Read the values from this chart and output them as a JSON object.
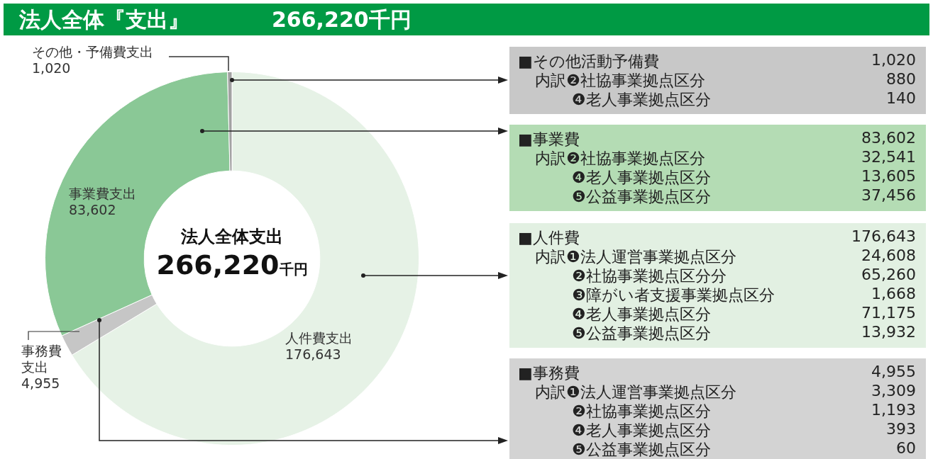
{
  "chart_data": {
    "type": "donut",
    "title": "法人全体『支出』",
    "subtitle": "266,220千円",
    "categories": [
      "人件費支出",
      "事務費支出",
      "事業費支出",
      "その他・予備費支出"
    ],
    "values": [
      176643,
      4955,
      83602,
      1020
    ],
    "colors": [
      "#e6f2e6",
      "#c6c6c6",
      "#8ac896",
      "#a2a2a2"
    ],
    "value_labels": [
      "176,643",
      "4,955",
      "83,602",
      "1,020"
    ],
    "legend": false,
    "annotations": [
      "法人全体支出",
      "266,220",
      "千円",
      "■その他活動予備費",
      "1,020",
      "内訳❷社協事業拠点区分",
      "880",
      "❹老人事業拠点区分",
      "140",
      "■事業費",
      "83,602",
      "内訳❷社協事業拠点区分",
      "32,541",
      "❹老人事業拠点区分",
      "13,605",
      "❺公益事業拠点区分",
      "37,456",
      "■人件費",
      "176,643",
      "内訳❶法人運営事業拠点区分",
      "24,608",
      "❷社協事業拠点区分分",
      "65,260",
      "❸障がい者支援事業拠点区分",
      "1,668",
      "❹老人事業拠点区分",
      "71,175",
      "❺公益事業拠点区分",
      "13,932",
      "■事務費",
      "4,955",
      "内訳❶法人運営事業拠点区分",
      "3,309",
      "❷社協事業拠点区分",
      "1,193",
      "❹老人事業拠点区分",
      "393",
      "❺公益事業拠点区分",
      "60"
    ]
  }
}
